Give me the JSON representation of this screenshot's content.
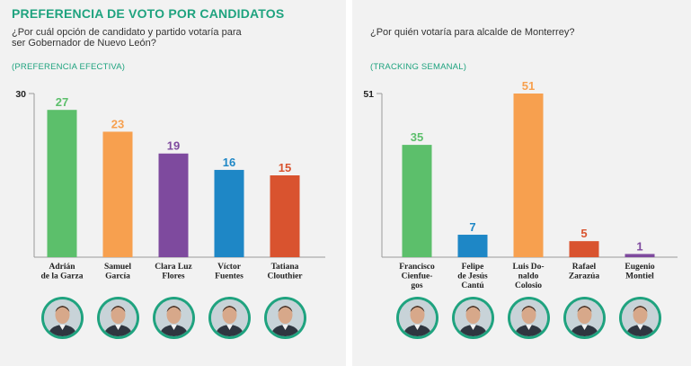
{
  "left": {
    "title": "PREFERENCIA DE VOTO POR CANDIDATOS",
    "question": "¿Por cuál opción de candidato y partido votaría para ser Gobernador de Nuevo León?",
    "subtitle": "(PREFERENCIA EFECTIVA)"
  },
  "right": {
    "question": "¿Por quién votaría para alcalde de Monterrey?",
    "subtitle": "(TRACKING SEMANAL)"
  },
  "chart_data": [
    {
      "type": "bar",
      "title": "PREFERENCIA DE VOTO POR CANDIDATOS",
      "subtitle": "(PREFERENCIA EFECTIVA)",
      "ylim": [
        0,
        30
      ],
      "ytick": "30",
      "categories": [
        [
          "Adrián",
          "de la Garza"
        ],
        [
          "Samuel",
          "García"
        ],
        [
          "Clara Luz",
          "Flores"
        ],
        [
          "Víctor",
          "Fuentes"
        ],
        [
          "Tatiana",
          "Clouthier"
        ]
      ],
      "values": [
        27,
        23,
        19,
        16,
        15
      ],
      "colors": [
        "#5cbf6b",
        "#f7a04f",
        "#7e4a9e",
        "#1e87c6",
        "#d9532f"
      ]
    },
    {
      "type": "bar",
      "title": "¿Por quién votaría para alcalde de Monterrey?",
      "subtitle": "(TRACKING SEMANAL)",
      "ylim": [
        0,
        51
      ],
      "ytick": "51",
      "categories": [
        [
          "Francisco",
          "Cienfue-",
          "gos"
        ],
        [
          "Felipe",
          "de Jesús",
          "Cantú"
        ],
        [
          "Luis Do-",
          "naldo",
          "Colosio"
        ],
        [
          "Rafael",
          "Zarazúa"
        ],
        [
          "Eugenio",
          "Montiel"
        ]
      ],
      "values": [
        35,
        7,
        51,
        5,
        1
      ],
      "colors": [
        "#5cbf6b",
        "#1e87c6",
        "#f7a04f",
        "#d9532f",
        "#7e4a9e"
      ]
    }
  ]
}
